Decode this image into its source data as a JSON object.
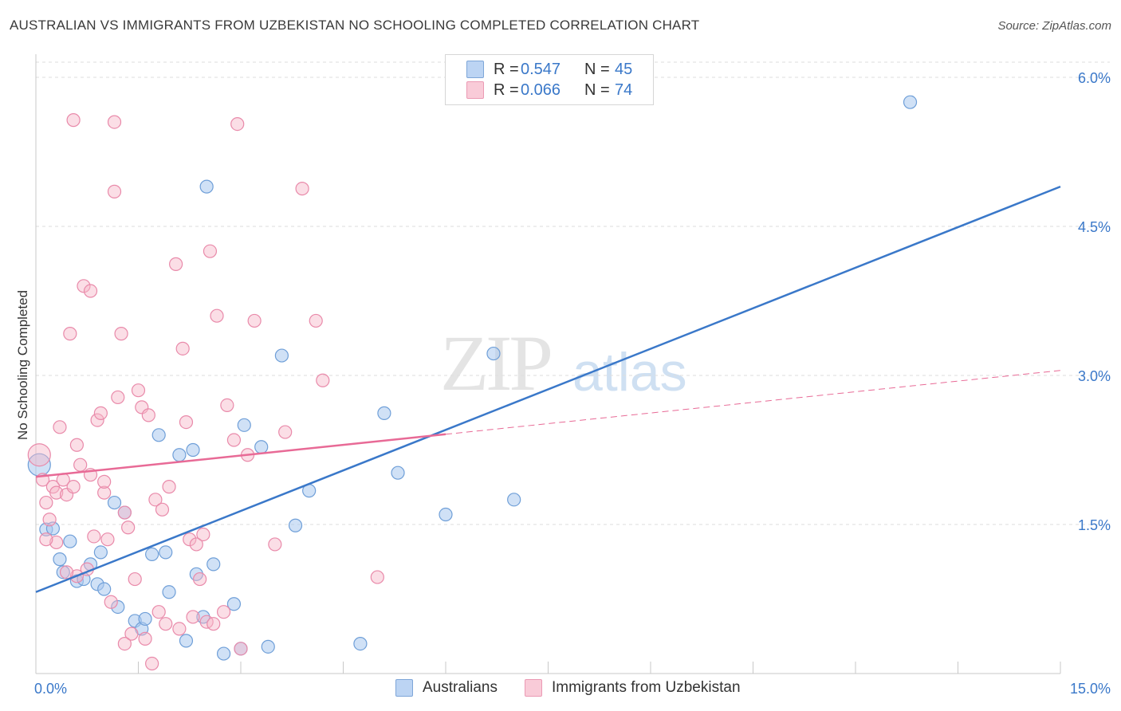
{
  "title": "AUSTRALIAN VS IMMIGRANTS FROM UZBEKISTAN NO SCHOOLING COMPLETED CORRELATION CHART",
  "source": "Source: ZipAtlas.com",
  "watermark": {
    "zip": "ZIP",
    "atlas": "atlas"
  },
  "legend": {
    "r_label": "R =",
    "n_label": "N =",
    "rows": [
      {
        "r": "0.547",
        "n": "45",
        "color": "#a9c8ef"
      },
      {
        "r": "0.066",
        "n": "74",
        "color": "#f6b6c8"
      }
    ]
  },
  "bottom_legend": [
    "Australians",
    "Immigrants from Uzbekistan"
  ],
  "chart_data": {
    "type": "scatter",
    "title": "AUSTRALIAN VS IMMIGRANTS FROM UZBEKISTAN NO SCHOOLING COMPLETED CORRELATION CHART",
    "ylabel": "No Schooling Completed",
    "xlabel": "",
    "xlim": [
      0,
      15
    ],
    "ylim": [
      0,
      6.3
    ],
    "x_tick_labels": [
      "0.0%",
      "15.0%"
    ],
    "y_ticks": [
      1.5,
      3.0,
      4.5,
      6.0
    ],
    "y_tick_labels": [
      "1.5%",
      "3.0%",
      "4.5%",
      "6.0%"
    ],
    "grid": true,
    "colors": {
      "australians": "#3a78c9",
      "uzbekistan": "#e86a96",
      "axis_label": "#3a78c9"
    },
    "series": [
      {
        "name": "Australians",
        "r": 0.547,
        "n": 45,
        "trend": {
          "x": [
            0,
            15
          ],
          "y": [
            0.82,
            4.9
          ],
          "dashed_from": null
        },
        "points": [
          [
            0.05,
            2.1
          ],
          [
            0.15,
            1.45
          ],
          [
            0.25,
            1.46
          ],
          [
            0.35,
            1.15
          ],
          [
            0.4,
            1.02
          ],
          [
            0.5,
            1.33
          ],
          [
            0.6,
            0.93
          ],
          [
            0.7,
            0.95
          ],
          [
            0.8,
            1.1
          ],
          [
            0.9,
            0.9
          ],
          [
            0.95,
            1.22
          ],
          [
            1.0,
            0.85
          ],
          [
            1.2,
            0.67
          ],
          [
            1.15,
            1.72
          ],
          [
            1.3,
            1.62
          ],
          [
            1.45,
            0.53
          ],
          [
            1.55,
            0.45
          ],
          [
            1.6,
            0.55
          ],
          [
            1.7,
            1.2
          ],
          [
            1.8,
            2.4
          ],
          [
            1.9,
            1.22
          ],
          [
            1.95,
            0.82
          ],
          [
            2.1,
            2.2
          ],
          [
            2.2,
            0.33
          ],
          [
            2.3,
            2.25
          ],
          [
            2.35,
            1.0
          ],
          [
            2.45,
            0.57
          ],
          [
            2.5,
            4.9
          ],
          [
            2.6,
            1.1
          ],
          [
            2.75,
            0.2
          ],
          [
            2.9,
            0.7
          ],
          [
            3.0,
            0.25
          ],
          [
            3.05,
            2.5
          ],
          [
            3.3,
            2.28
          ],
          [
            3.4,
            0.27
          ],
          [
            3.6,
            3.2
          ],
          [
            3.8,
            1.49
          ],
          [
            4.0,
            1.84
          ],
          [
            4.75,
            0.3
          ],
          [
            5.1,
            2.62
          ],
          [
            5.3,
            2.02
          ],
          [
            6.0,
            1.6
          ],
          [
            6.7,
            3.22
          ],
          [
            7.0,
            1.75
          ],
          [
            12.8,
            5.75
          ]
        ]
      },
      {
        "name": "Immigrants from Uzbekistan",
        "r": 0.066,
        "n": 74,
        "trend": {
          "x": [
            0,
            15
          ],
          "y": [
            1.98,
            3.05
          ],
          "solid_until": 6.0
        },
        "points": [
          [
            0.05,
            2.2
          ],
          [
            0.1,
            1.95
          ],
          [
            0.15,
            1.72
          ],
          [
            0.2,
            1.55
          ],
          [
            0.25,
            1.88
          ],
          [
            0.3,
            1.82
          ],
          [
            0.35,
            2.48
          ],
          [
            0.4,
            1.95
          ],
          [
            0.45,
            1.8
          ],
          [
            0.5,
            3.42
          ],
          [
            0.55,
            1.88
          ],
          [
            0.6,
            2.3
          ],
          [
            0.65,
            2.1
          ],
          [
            0.7,
            3.9
          ],
          [
            0.75,
            1.05
          ],
          [
            0.8,
            3.85
          ],
          [
            0.85,
            1.38
          ],
          [
            0.9,
            2.55
          ],
          [
            0.95,
            2.62
          ],
          [
            1.0,
            1.82
          ],
          [
            1.05,
            1.35
          ],
          [
            1.1,
            0.72
          ],
          [
            1.15,
            4.85
          ],
          [
            1.2,
            2.78
          ],
          [
            1.25,
            3.42
          ],
          [
            1.3,
            1.62
          ],
          [
            1.35,
            1.47
          ],
          [
            1.4,
            0.4
          ],
          [
            1.45,
            0.95
          ],
          [
            1.5,
            2.85
          ],
          [
            1.55,
            2.68
          ],
          [
            1.6,
            0.35
          ],
          [
            1.65,
            2.6
          ],
          [
            1.7,
            0.1
          ],
          [
            1.75,
            1.75
          ],
          [
            1.8,
            0.62
          ],
          [
            1.85,
            1.65
          ],
          [
            1.9,
            0.5
          ],
          [
            1.95,
            1.88
          ],
          [
            2.05,
            4.12
          ],
          [
            2.15,
            3.27
          ],
          [
            2.2,
            2.53
          ],
          [
            2.25,
            1.35
          ],
          [
            2.3,
            0.57
          ],
          [
            2.35,
            1.3
          ],
          [
            2.45,
            1.4
          ],
          [
            2.5,
            0.52
          ],
          [
            2.55,
            4.25
          ],
          [
            2.6,
            0.5
          ],
          [
            2.65,
            3.6
          ],
          [
            2.75,
            0.62
          ],
          [
            2.8,
            2.7
          ],
          [
            2.9,
            2.35
          ],
          [
            3.0,
            0.25
          ],
          [
            3.1,
            2.2
          ],
          [
            3.2,
            3.55
          ],
          [
            3.5,
            1.3
          ],
          [
            3.65,
            2.43
          ],
          [
            3.9,
            4.88
          ],
          [
            4.1,
            3.55
          ],
          [
            4.2,
            2.95
          ],
          [
            5.0,
            0.97
          ],
          [
            1.15,
            5.55
          ],
          [
            2.95,
            5.53
          ],
          [
            0.55,
            5.57
          ],
          [
            0.8,
            2.0
          ],
          [
            1.0,
            1.93
          ],
          [
            0.3,
            1.32
          ],
          [
            0.6,
            0.98
          ],
          [
            1.3,
            0.3
          ],
          [
            2.1,
            0.45
          ],
          [
            0.15,
            1.35
          ],
          [
            0.45,
            1.02
          ],
          [
            2.4,
            0.95
          ]
        ]
      }
    ]
  }
}
